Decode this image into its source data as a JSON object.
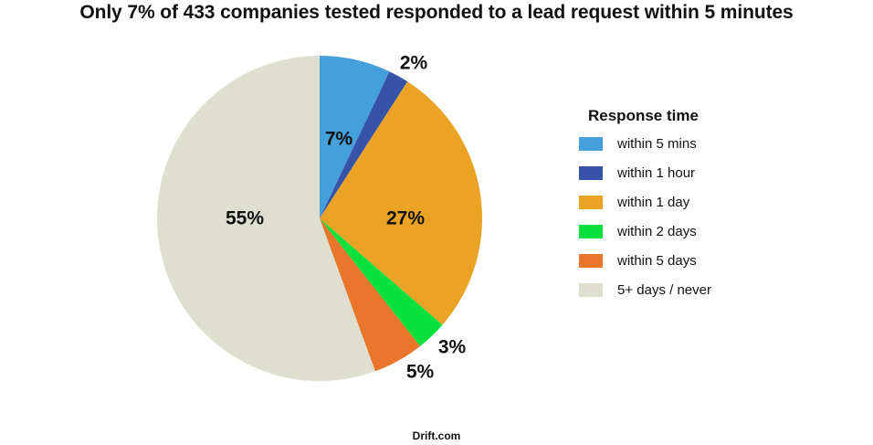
{
  "chart_data": {
    "type": "pie",
    "title": "Only 7% of 433 companies tested responded to a lead request within 5 minutes",
    "legend_title": "Response time",
    "legend_placement": "right",
    "start_angle_deg": 0,
    "direction": "clockwise",
    "slices": [
      {
        "label": "within 5 mins",
        "value": 7,
        "display": "7%",
        "color": "#459fdb"
      },
      {
        "label": "within 1 hour",
        "value": 2,
        "display": "2%",
        "color": "#3753a8"
      },
      {
        "label": "within 1 day",
        "value": 27,
        "display": "27%",
        "color": "#eaa324"
      },
      {
        "label": "within 2 days",
        "value": 3,
        "display": "3%",
        "color": "#07e03d"
      },
      {
        "label": "within 5 days",
        "value": 5,
        "display": "5%",
        "color": "#e8752a"
      },
      {
        "label": "5+ days / never",
        "value": 55,
        "display": "55%",
        "color": "#dedfcf"
      }
    ],
    "source": "Drift.com"
  }
}
